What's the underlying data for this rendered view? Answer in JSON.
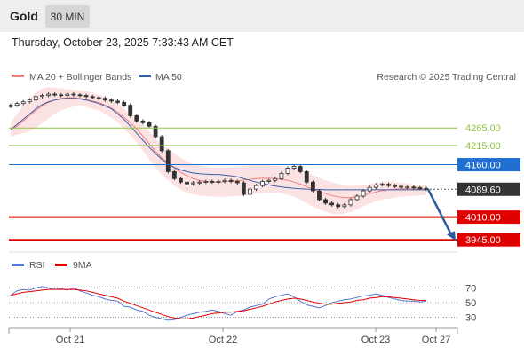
{
  "header": {
    "title": "Gold",
    "timeframe": "30 MIN"
  },
  "timestamp": "Thursday, October 23, 2025 7:33:43 AM CET",
  "copyright": "Research © 2025 Trading Central",
  "colors": {
    "bollinger": "#f08080",
    "ma50": "#3a5ea8",
    "resistance": "#8dc63f",
    "pivot": "#1f6fd1",
    "support": "#e00000",
    "current": "#333333",
    "arrow": "#2c5aa0",
    "rsi": "#5577cc",
    "rsi_ma": "#e00000"
  },
  "legend": {
    "bollinger_label": "MA 20 + Bollinger Bands",
    "ma50_label": "MA 50"
  },
  "rsi_legend": {
    "rsi_label": "RSI",
    "ma_label": "9MA"
  },
  "chart_data": [
    {
      "type": "candlestick",
      "title": "",
      "x_tick_labels": [
        "Oct 21",
        "Oct 22",
        "Oct 23",
        "Oct 27"
      ],
      "ylim": [
        3915,
        4390
      ],
      "levels": [
        {
          "label": "4265.00",
          "value": 4265.0,
          "kind": "resistance"
        },
        {
          "label": "4215.00",
          "value": 4215.0,
          "kind": "resistance"
        },
        {
          "label": "4160.00",
          "value": 4160.0,
          "kind": "pivot"
        },
        {
          "label": "4089.60",
          "value": 4089.6,
          "kind": "current"
        },
        {
          "label": "4010.00",
          "value": 4010.0,
          "kind": "support"
        },
        {
          "label": "3945.00",
          "value": 3945.0,
          "kind": "support"
        }
      ],
      "close": [
        4330,
        4335,
        4340,
        4345,
        4355,
        4358,
        4362,
        4360,
        4358,
        4362,
        4360,
        4358,
        4355,
        4352,
        4350,
        4345,
        4342,
        4338,
        4330,
        4300,
        4285,
        4280,
        4270,
        4240,
        4200,
        4140,
        4120,
        4110,
        4105,
        4108,
        4110,
        4112,
        4110,
        4112,
        4115,
        4112,
        4108,
        4075,
        4090,
        4100,
        4112,
        4115,
        4120,
        4135,
        4150,
        4155,
        4140,
        4110,
        4085,
        4060,
        4050,
        4045,
        4040,
        4045,
        4060,
        4070,
        4085,
        4095,
        4102,
        4104,
        4100,
        4098,
        4095,
        4096,
        4094,
        4092,
        4089.6
      ],
      "ma20": [
        4260,
        4270,
        4285,
        4300,
        4315,
        4328,
        4338,
        4345,
        4350,
        4352,
        4352,
        4350,
        4346,
        4342,
        4338,
        4330,
        4322,
        4310,
        4296,
        4280,
        4262,
        4242,
        4220,
        4198,
        4180,
        4165,
        4150,
        4138,
        4128,
        4120,
        4115,
        4112,
        4110,
        4110,
        4111,
        4112,
        4114,
        4116,
        4118,
        4120,
        4121,
        4121,
        4120,
        4118,
        4115,
        4110,
        4104,
        4097,
        4090,
        4083,
        4077,
        4072,
        4068,
        4066,
        4066,
        4068,
        4072,
        4077,
        4082,
        4086,
        4088,
        4090,
        4091,
        4091,
        4091,
        4090,
        4090
      ],
      "ma50": [
        4260,
        4275,
        4290,
        4305,
        4320,
        4332,
        4340,
        4345,
        4348,
        4350,
        4350,
        4348,
        4345,
        4340,
        4335,
        4328,
        4320,
        4305,
        4290,
        4270,
        4250,
        4230,
        4210,
        4192,
        4175,
        4162,
        4152,
        4145,
        4140,
        4136,
        4134,
        4133,
        4132,
        4132,
        4130,
        4128,
        4125,
        4120,
        4115,
        4110,
        4106,
        4102,
        4099,
        4096,
        4094,
        4092,
        4091,
        4090,
        4089,
        4089,
        4088,
        4088,
        4088,
        4088,
        4088,
        4088,
        4088,
        4088,
        4088,
        4088,
        4088,
        4088,
        4088,
        4088,
        4088,
        4088,
        4088
      ],
      "bb_upper": [
        4280,
        4305,
        4330,
        4350,
        4368,
        4378,
        4382,
        4380,
        4378,
        4376,
        4375,
        4372,
        4370,
        4366,
        4360,
        4355,
        4348,
        4335,
        4320,
        4305,
        4290,
        4275,
        4255,
        4235,
        4218,
        4205,
        4192,
        4180,
        4170,
        4162,
        4158,
        4155,
        4152,
        4152,
        4152,
        4153,
        4155,
        4157,
        4159,
        4160,
        4160,
        4159,
        4157,
        4155,
        4152,
        4150,
        4145,
        4138,
        4130,
        4122,
        4115,
        4110,
        4105,
        4102,
        4100,
        4100,
        4102,
        4105,
        4108,
        4110,
        4110,
        4110,
        4108,
        4106,
        4104,
        4102,
        4100
      ],
      "bb_lower": [
        4240,
        4245,
        4250,
        4255,
        4265,
        4278,
        4292,
        4305,
        4315,
        4322,
        4326,
        4328,
        4325,
        4320,
        4315,
        4305,
        4295,
        4280,
        4262,
        4245,
        4225,
        4200,
        4175,
        4150,
        4132,
        4115,
        4100,
        4088,
        4080,
        4075,
        4072,
        4070,
        4069,
        4068,
        4068,
        4069,
        4070,
        4072,
        4074,
        4076,
        4078,
        4079,
        4080,
        4078,
        4074,
        4068,
        4060,
        4050,
        4040,
        4032,
        4025,
        4020,
        4018,
        4020,
        4025,
        4032,
        4040,
        4048,
        4055,
        4060,
        4063,
        4066,
        4068,
        4070,
        4071,
        4072,
        4073
      ],
      "projection": {
        "from": 4089.6,
        "to": 3945.0
      }
    },
    {
      "type": "line",
      "title": "",
      "ylim": [
        15,
        85
      ],
      "y_ticks": [
        70,
        50,
        30
      ],
      "series": [
        {
          "name": "RSI",
          "values": [
            60,
            66,
            68,
            67,
            70,
            72,
            70,
            68,
            69,
            67,
            70,
            66,
            63,
            60,
            58,
            55,
            53,
            52,
            45,
            44,
            40,
            38,
            33,
            30,
            28,
            26,
            27,
            30,
            33,
            35,
            37,
            38,
            40,
            38,
            35,
            33,
            38,
            40,
            44,
            46,
            48,
            55,
            58,
            60,
            62,
            58,
            52,
            47,
            45,
            43,
            46,
            50,
            52,
            54,
            55,
            57,
            59,
            60,
            62,
            60,
            57,
            55,
            53,
            52,
            52,
            51,
            52
          ]
        },
        {
          "name": "9MA",
          "values": [
            60,
            62,
            64,
            65,
            66,
            67,
            68,
            68,
            68,
            68,
            68,
            67,
            66,
            64,
            62,
            60,
            58,
            56,
            52,
            49,
            46,
            43,
            40,
            37,
            34,
            31,
            29,
            28,
            28,
            29,
            31,
            33,
            35,
            36,
            37,
            37,
            38,
            39,
            41,
            43,
            45,
            48,
            51,
            53,
            55,
            56,
            55,
            53,
            51,
            49,
            48,
            48,
            49,
            50,
            51,
            53,
            54,
            56,
            57,
            58,
            58,
            57,
            56,
            55,
            54,
            53,
            53
          ]
        }
      ]
    }
  ]
}
